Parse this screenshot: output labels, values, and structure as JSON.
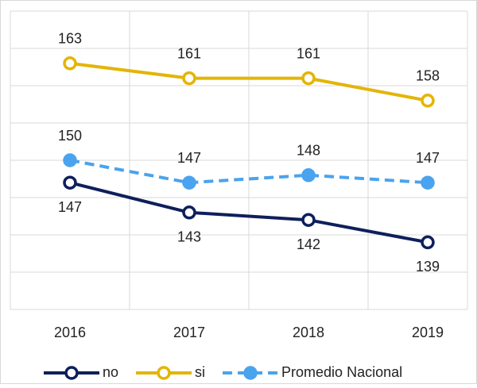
{
  "chart_data": {
    "type": "line",
    "categories": [
      "2016",
      "2017",
      "2018",
      "2019"
    ],
    "series": [
      {
        "name": "no",
        "color": "#0e1f5b",
        "values": [
          147,
          143,
          142,
          139
        ],
        "dashed": false,
        "marker_fill": "#ffffff"
      },
      {
        "name": "si",
        "color": "#e3b505",
        "values": [
          163,
          161,
          161,
          158
        ],
        "dashed": false,
        "marker_fill": "#ffffff"
      },
      {
        "name": "Promedio Nacional",
        "color": "#4aa3ee",
        "values": [
          150,
          147,
          148,
          147
        ],
        "dashed": true,
        "marker_fill": "#4aa3ee"
      }
    ],
    "ylim": [
      130,
      170
    ],
    "yticks": [
      130,
      135,
      140,
      145,
      150,
      155,
      160,
      165,
      170
    ],
    "grid": true,
    "legend": "bottom"
  }
}
